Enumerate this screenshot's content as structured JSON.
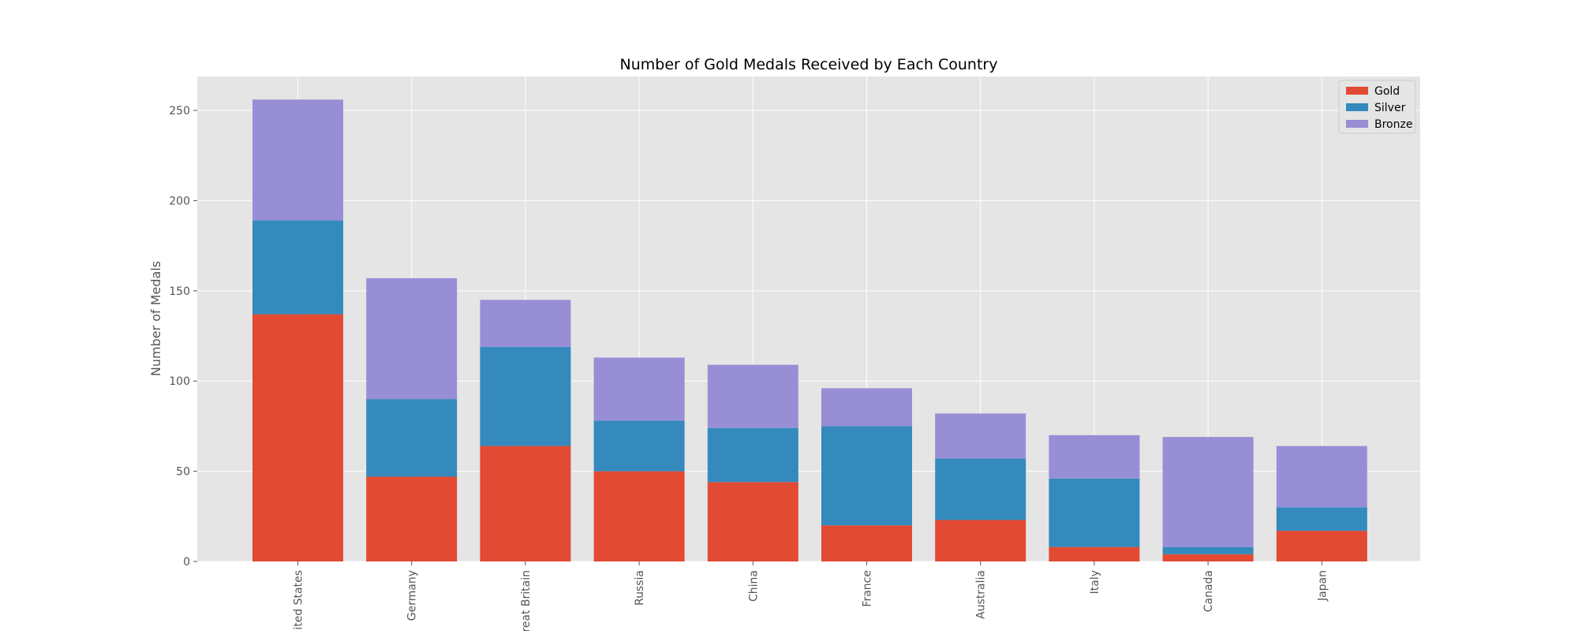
{
  "chart_data": {
    "type": "bar",
    "stacked": true,
    "title": "Number of Gold Medals Received by Each Country",
    "xlabel": "",
    "ylabel": "Number of Medals",
    "categories": [
      "United States",
      "Germany",
      "Great Britain",
      "Russia",
      "China",
      "France",
      "Australia",
      "Italy",
      "Canada",
      "Japan"
    ],
    "series": [
      {
        "name": "Gold",
        "color": "#E24A33",
        "values": [
          137,
          47,
          64,
          50,
          44,
          20,
          23,
          8,
          4,
          17
        ]
      },
      {
        "name": "Silver",
        "color": "#348ABD",
        "values": [
          52,
          43,
          55,
          28,
          30,
          55,
          34,
          38,
          4,
          13
        ]
      },
      {
        "name": "Bronze",
        "color": "#988ED5",
        "values": [
          67,
          67,
          26,
          35,
          35,
          21,
          25,
          24,
          61,
          34
        ]
      }
    ],
    "ylim": [
      0,
      268.8
    ],
    "yticks": [
      0,
      50,
      100,
      150,
      200,
      250
    ],
    "grid": true,
    "legend_position": "top-right",
    "colors": {
      "plot_background": "#E5E5E5",
      "grid": "#FFFFFF",
      "tick_label": "#555555"
    }
  }
}
